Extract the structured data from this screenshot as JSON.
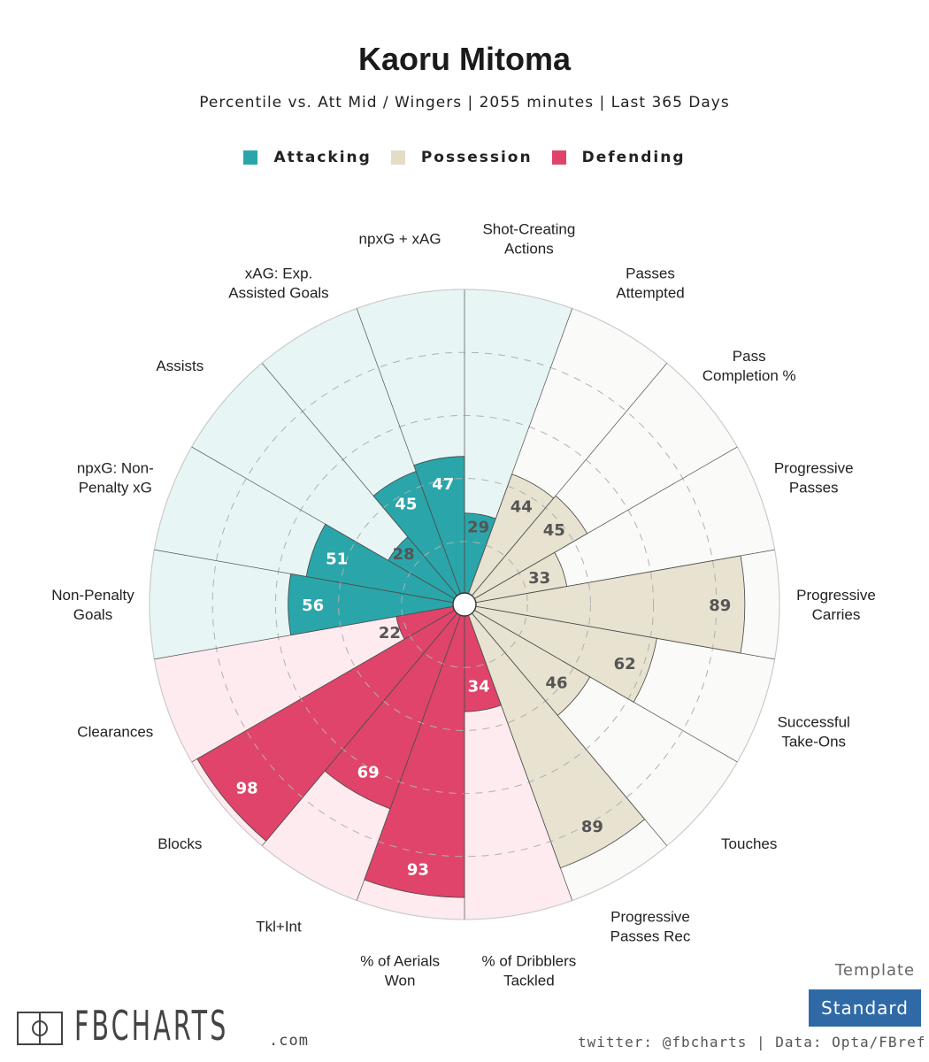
{
  "title": "Kaoru Mitoma",
  "subtitle": "Percentile vs. Att Mid / Wingers | 2055 minutes | Last 365 Days",
  "legend": [
    {
      "label": "Attacking",
      "color": "#2aa6aa"
    },
    {
      "label": "Possession",
      "color": "#e8e2d0"
    },
    {
      "label": "Defending",
      "color": "#e0446a"
    }
  ],
  "chart_data": {
    "type": "polar-bar",
    "rmax": 100,
    "grid": "dashed rings",
    "categories": [
      {
        "label": "Shot-Creating\nActions",
        "value": 29,
        "group": "Attacking"
      },
      {
        "label": "Passes\nAttempted",
        "value": 44,
        "group": "Possession"
      },
      {
        "label": "Pass\nCompletion %",
        "value": 45,
        "group": "Possession"
      },
      {
        "label": "Progressive\nPasses",
        "value": 33,
        "group": "Possession"
      },
      {
        "label": "Progressive\nCarries",
        "value": 89,
        "group": "Possession"
      },
      {
        "label": "Successful\nTake-Ons",
        "value": 62,
        "group": "Possession"
      },
      {
        "label": "Touches",
        "value": 46,
        "group": "Possession"
      },
      {
        "label": "Progressive\nPasses Rec",
        "value": 89,
        "group": "Possession"
      },
      {
        "label": "% of Dribblers\nTackled",
        "value": 34,
        "group": "Defending"
      },
      {
        "label": "% of Aerials\nWon",
        "value": 93,
        "group": "Defending"
      },
      {
        "label": "Tkl+Int",
        "value": 69,
        "group": "Defending"
      },
      {
        "label": "Blocks",
        "value": 98,
        "group": "Defending"
      },
      {
        "label": "Clearances",
        "value": 22,
        "group": "Defending"
      },
      {
        "label": "Non-Penalty\nGoals",
        "value": 56,
        "group": "Attacking"
      },
      {
        "label": "npxG: Non-\nPenalty xG",
        "value": 51,
        "group": "Attacking"
      },
      {
        "label": "Assists",
        "value": 28,
        "group": "Attacking"
      },
      {
        "label": "xAG: Exp.\nAssisted Goals",
        "value": 45,
        "group": "Attacking"
      },
      {
        "label": "npxG + xAG",
        "value": 47,
        "group": "Attacking"
      }
    ],
    "colors": {
      "Attacking": {
        "bar": "#2aa6aa",
        "bg": "#e8f5f5"
      },
      "Possession": {
        "bar": "#e8e2d0",
        "bg": "#fafaf8"
      },
      "Defending": {
        "bar": "#e0446a",
        "bg": "#fdebef"
      }
    }
  },
  "template": {
    "label": "Template",
    "button": "Standard"
  },
  "footer": "twitter: @fbcharts | Data: Opta/FBref",
  "logo": {
    "text": "FBCHARTS",
    "suffix": ".com"
  }
}
